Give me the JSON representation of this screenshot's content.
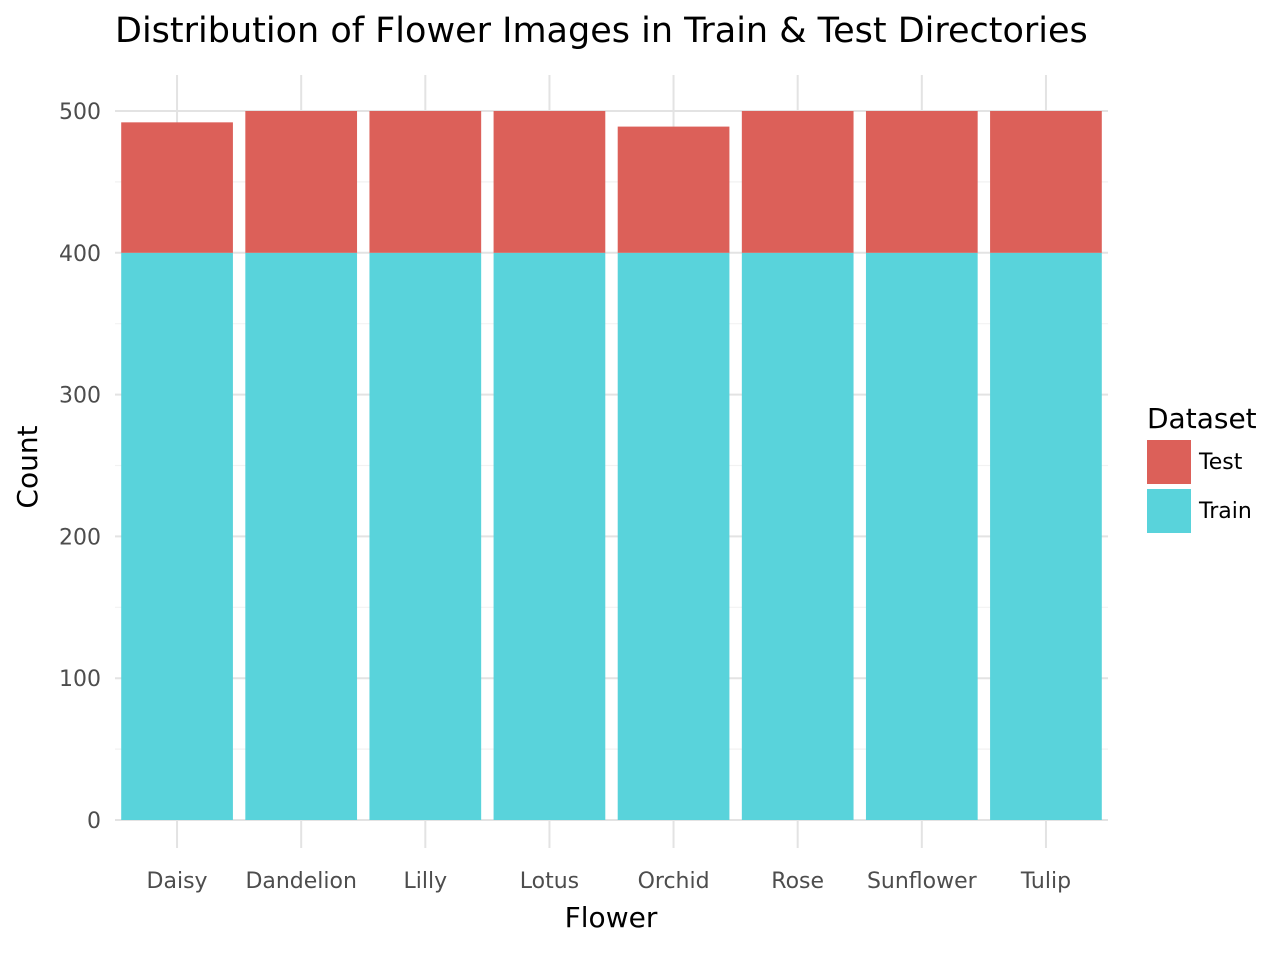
{
  "chart_data": {
    "type": "bar",
    "stacked": true,
    "title": "Distribution of Flower Images in Train & Test Directories",
    "xlabel": "Flower",
    "ylabel": "Count",
    "ylim": [
      0,
      525
    ],
    "yticks": [
      0,
      100,
      200,
      300,
      400,
      500
    ],
    "grid": true,
    "categories": [
      "Daisy",
      "Dandelion",
      "Lilly",
      "Lotus",
      "Orchid",
      "Rose",
      "Sunflower",
      "Tulip"
    ],
    "series": [
      {
        "name": "Train",
        "color": "#59d3db",
        "values": [
          400,
          400,
          400,
          400,
          400,
          400,
          400,
          400
        ]
      },
      {
        "name": "Test",
        "color": "#dc6059",
        "values": [
          92,
          100,
          100,
          100,
          89,
          100,
          100,
          100
        ]
      }
    ],
    "legend": {
      "title": "Dataset",
      "position": "right",
      "items": [
        {
          "label": "Test",
          "color": "#dc6059"
        },
        {
          "label": "Train",
          "color": "#59d3db"
        }
      ]
    }
  }
}
